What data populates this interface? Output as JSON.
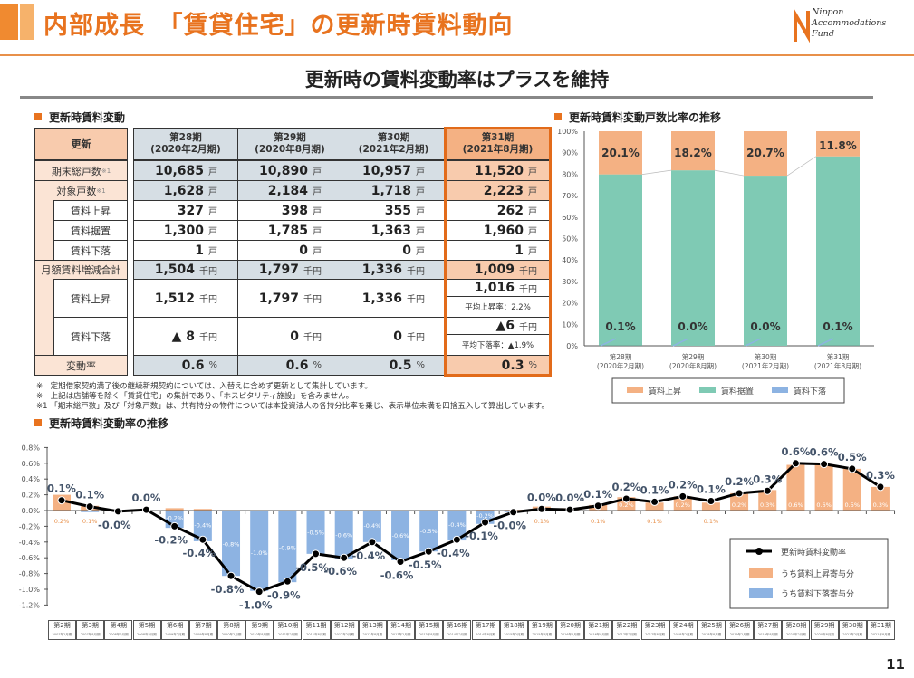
{
  "header": {
    "title": "内部成長　「賃貸住宅」の更新時賃料動向",
    "logo": "Nippon Accommodations Fund",
    "subtitle": "更新時の賃料変動率はプラスを維持",
    "page_number": "11",
    "accent": "#e8731f"
  },
  "table": {
    "section_title": "更新時賃料変動",
    "header_label": "更新",
    "periods": [
      {
        "name": "第28期",
        "sub": "(2020年2月期)"
      },
      {
        "name": "第29期",
        "sub": "(2020年8月期)"
      },
      {
        "name": "第30期",
        "sub": "(2021年2月期)"
      },
      {
        "name": "第31期",
        "sub": "(2021年8月期)"
      }
    ],
    "rows": [
      {
        "label": "期末総戸数",
        "note": "※1",
        "unit": "戸",
        "values": [
          "10,685",
          "10,890",
          "10,957",
          "11,520"
        ]
      },
      {
        "label": "対象戸数",
        "note": "※1",
        "unit": "戸",
        "values": [
          "1,628",
          "2,184",
          "1,718",
          "2,223"
        ]
      },
      {
        "label": "賃料上昇",
        "unit": "戸",
        "values": [
          "327",
          "398",
          "355",
          "262"
        ]
      },
      {
        "label": "賃料据置",
        "unit": "戸",
        "values": [
          "1,300",
          "1,785",
          "1,363",
          "1,960"
        ]
      },
      {
        "label": "賃料下落",
        "unit": "戸",
        "values": [
          "1",
          "0",
          "0",
          "1"
        ]
      },
      {
        "label": "月額賃料増減合計",
        "unit": "千円",
        "values": [
          "1,504",
          "1,797",
          "1,336",
          "1,009"
        ]
      },
      {
        "label": "賃料上昇",
        "unit": "千円",
        "values": [
          "1,512",
          "1,797",
          "1,336",
          "1,016"
        ],
        "latest_note": "平均上昇率：2.2%"
      },
      {
        "label": "賃料下落",
        "unit": "千円",
        "values": [
          "▲ 8",
          "0",
          "0",
          "▲6"
        ],
        "latest_note": "平均下落率：▲1.9%"
      },
      {
        "label": "変動率",
        "unit": "%",
        "values": [
          "0.6",
          "0.6",
          "0.5",
          "0.3"
        ]
      }
    ],
    "footnotes": [
      "※　定期借家契約満了後の継続新規契約については、入替えに含めず更新として集計しています。",
      "※　上記は店舗等を除く「賃貸住宅」の集計であり、「ホスピタリティ施設」を含みません。",
      "※1 「期末総戸数」及び「対象戸数」は、共有持分の物件については本投資法人の各持分比率を乗じ、表示単位未満を四捨五入して算出しています。"
    ]
  },
  "chart_data": [
    {
      "type": "bar",
      "stacked": true,
      "title": "更新時賃料変動戸数比率の推移",
      "categories": [
        "第28期",
        "第29期",
        "第30期",
        "第31期"
      ],
      "category_subs": [
        "(2020年2月期)",
        "(2020年8月期)",
        "(2021年2月期)",
        "(2021年8月期)"
      ],
      "ylim": [
        0,
        100
      ],
      "yticks": [
        "0%",
        "10%",
        "20%",
        "30%",
        "40%",
        "50%",
        "60%",
        "70%",
        "80%",
        "90%",
        "100%"
      ],
      "legend_position": "bottom",
      "series": [
        {
          "name": "賃料上昇",
          "color": "#f4b183",
          "values": [
            20.1,
            18.2,
            20.7,
            11.8
          ],
          "labels": [
            "20.1%",
            "18.2%",
            "20.7%",
            "11.8%"
          ]
        },
        {
          "name": "賃料据置",
          "color": "#7fcab4",
          "values": [
            79.8,
            81.8,
            79.3,
            88.2
          ],
          "labels": [
            "79.8%",
            "81.8%",
            "79.3%",
            "88.2%"
          ]
        },
        {
          "name": "賃料下落",
          "color": "#8db3e2",
          "values": [
            0.1,
            0.0,
            0.0,
            0.1
          ],
          "labels": [
            "0.1%",
            "0.0%",
            "0.0%",
            "0.1%"
          ]
        }
      ]
    },
    {
      "type": "bar",
      "title": "更新時賃料変動率の推移",
      "categories": [
        "第2期",
        "第3期",
        "第4期",
        "第5期",
        "第6期",
        "第7期",
        "第8期",
        "第9期",
        "第10期",
        "第11期",
        "第12期",
        "第13期",
        "第14期",
        "第15期",
        "第16期",
        "第17期",
        "第18期",
        "第19期",
        "第20期",
        "第21期",
        "第22期",
        "第23期",
        "第24期",
        "第25期",
        "第26期",
        "第27期",
        "第28期",
        "第29期",
        "第30期",
        "第31期"
      ],
      "category_subs": [
        "2007年2月期",
        "2007年8月期",
        "2008年2月期",
        "2008年8月期",
        "2009年2月期",
        "2009年8月期",
        "2010年2月期",
        "2010年8月期",
        "2011年2月期",
        "2011年8月期",
        "2012年2月期",
        "2012年8月期",
        "2013年2月期",
        "2013年8月期",
        "2014年2月期",
        "2014年8月期",
        "2015年2月期",
        "2015年8月期",
        "2016年2月期",
        "2016年8月期",
        "2017年2月期",
        "2017年8月期",
        "2018年2月期",
        "2018年8月期",
        "2019年2月期",
        "2019年8月期",
        "2020年2月期",
        "2020年8月期",
        "2021年2月期",
        "2021年8月期"
      ],
      "ylim": [
        -1.2,
        0.8
      ],
      "yticks": [
        "0.8%",
        "0.6%",
        "0.4%",
        "0.2%",
        "0.0%",
        "-0.2%",
        "-0.4%",
        "-0.6%",
        "-0.8%",
        "-1.0%",
        "-1.2%"
      ],
      "legend_position": "bottom-right",
      "series": [
        {
          "name": "更新時賃料変動率",
          "type": "line",
          "color": "#000000",
          "values": [
            0.13,
            0.05,
            -0.01,
            0.01,
            -0.2,
            -0.37,
            -0.83,
            -1.03,
            -0.9,
            -0.55,
            -0.6,
            -0.4,
            -0.65,
            -0.52,
            -0.37,
            -0.15,
            -0.02,
            0.02,
            0.01,
            0.06,
            0.15,
            0.11,
            0.18,
            0.12,
            0.22,
            0.25,
            0.6,
            0.59,
            0.53,
            0.3
          ],
          "labels": [
            "0.1%",
            "0.1%",
            "-0.0%",
            "0.0%",
            "-0.2%",
            "-0.4%",
            "-0.8%",
            "-1.0%",
            "-0.9%",
            "-0.5%",
            "-0.6%",
            "-0.4%",
            "-0.6%",
            "-0.5%",
            "-0.4%",
            "-0.1%",
            "-0.0%",
            "0.0%",
            "0.0%",
            "0.1%",
            "0.2%",
            "0.1%",
            "0.2%",
            "0.1%",
            "0.2%",
            "0.3%",
            "0.6%",
            "0.6%",
            "0.5%",
            "0.3%"
          ]
        },
        {
          "name": "うち賃料上昇寄与分",
          "type": "bar",
          "color": "#f4b183",
          "values": [
            0.2,
            0.06,
            0,
            0,
            0.03,
            0.02,
            0,
            0,
            0,
            0,
            0,
            0,
            0,
            0,
            0,
            0.01,
            0.01,
            0.05,
            0.03,
            0.07,
            0.17,
            0.1,
            0.18,
            0.1,
            0.22,
            0.26,
            0.58,
            0.58,
            0.53,
            0.3
          ],
          "labels": [
            "0.2%",
            "0.1%",
            "",
            "",
            "",
            "",
            "",
            "",
            "",
            "",
            "",
            "",
            "",
            "",
            "",
            "",
            "",
            "0.1%",
            "",
            "0.1%",
            "0.2%",
            "0.1%",
            "0.2%",
            "0.1%",
            "0.2%",
            "0.3%",
            "0.6%",
            "0.6%",
            "0.5%",
            "0.3%"
          ]
        },
        {
          "name": "うち賃料下落寄与分",
          "type": "bar",
          "color": "#8db3e2",
          "values": [
            0,
            -0.02,
            -0.01,
            0,
            -0.22,
            -0.39,
            -0.83,
            -1.02,
            -0.91,
            -0.55,
            -0.62,
            -0.4,
            -0.63,
            -0.52,
            -0.38,
            -0.17,
            -0.02,
            0,
            0,
            0,
            0,
            0,
            0,
            0,
            0,
            0,
            0,
            0,
            0,
            0
          ],
          "labels": [
            "",
            "",
            "",
            "",
            "-0.2%",
            "-0.4%",
            "-0.8%",
            "-1.0%",
            "-0.9%",
            "-0.5%",
            "-0.6%",
            "-0.4%",
            "-0.6%",
            "-0.5%",
            "-0.4%",
            "-0.2%",
            "",
            "",
            "",
            "",
            "",
            "",
            "",
            "",
            "",
            "",
            "",
            "",
            "",
            ""
          ]
        }
      ]
    }
  ]
}
